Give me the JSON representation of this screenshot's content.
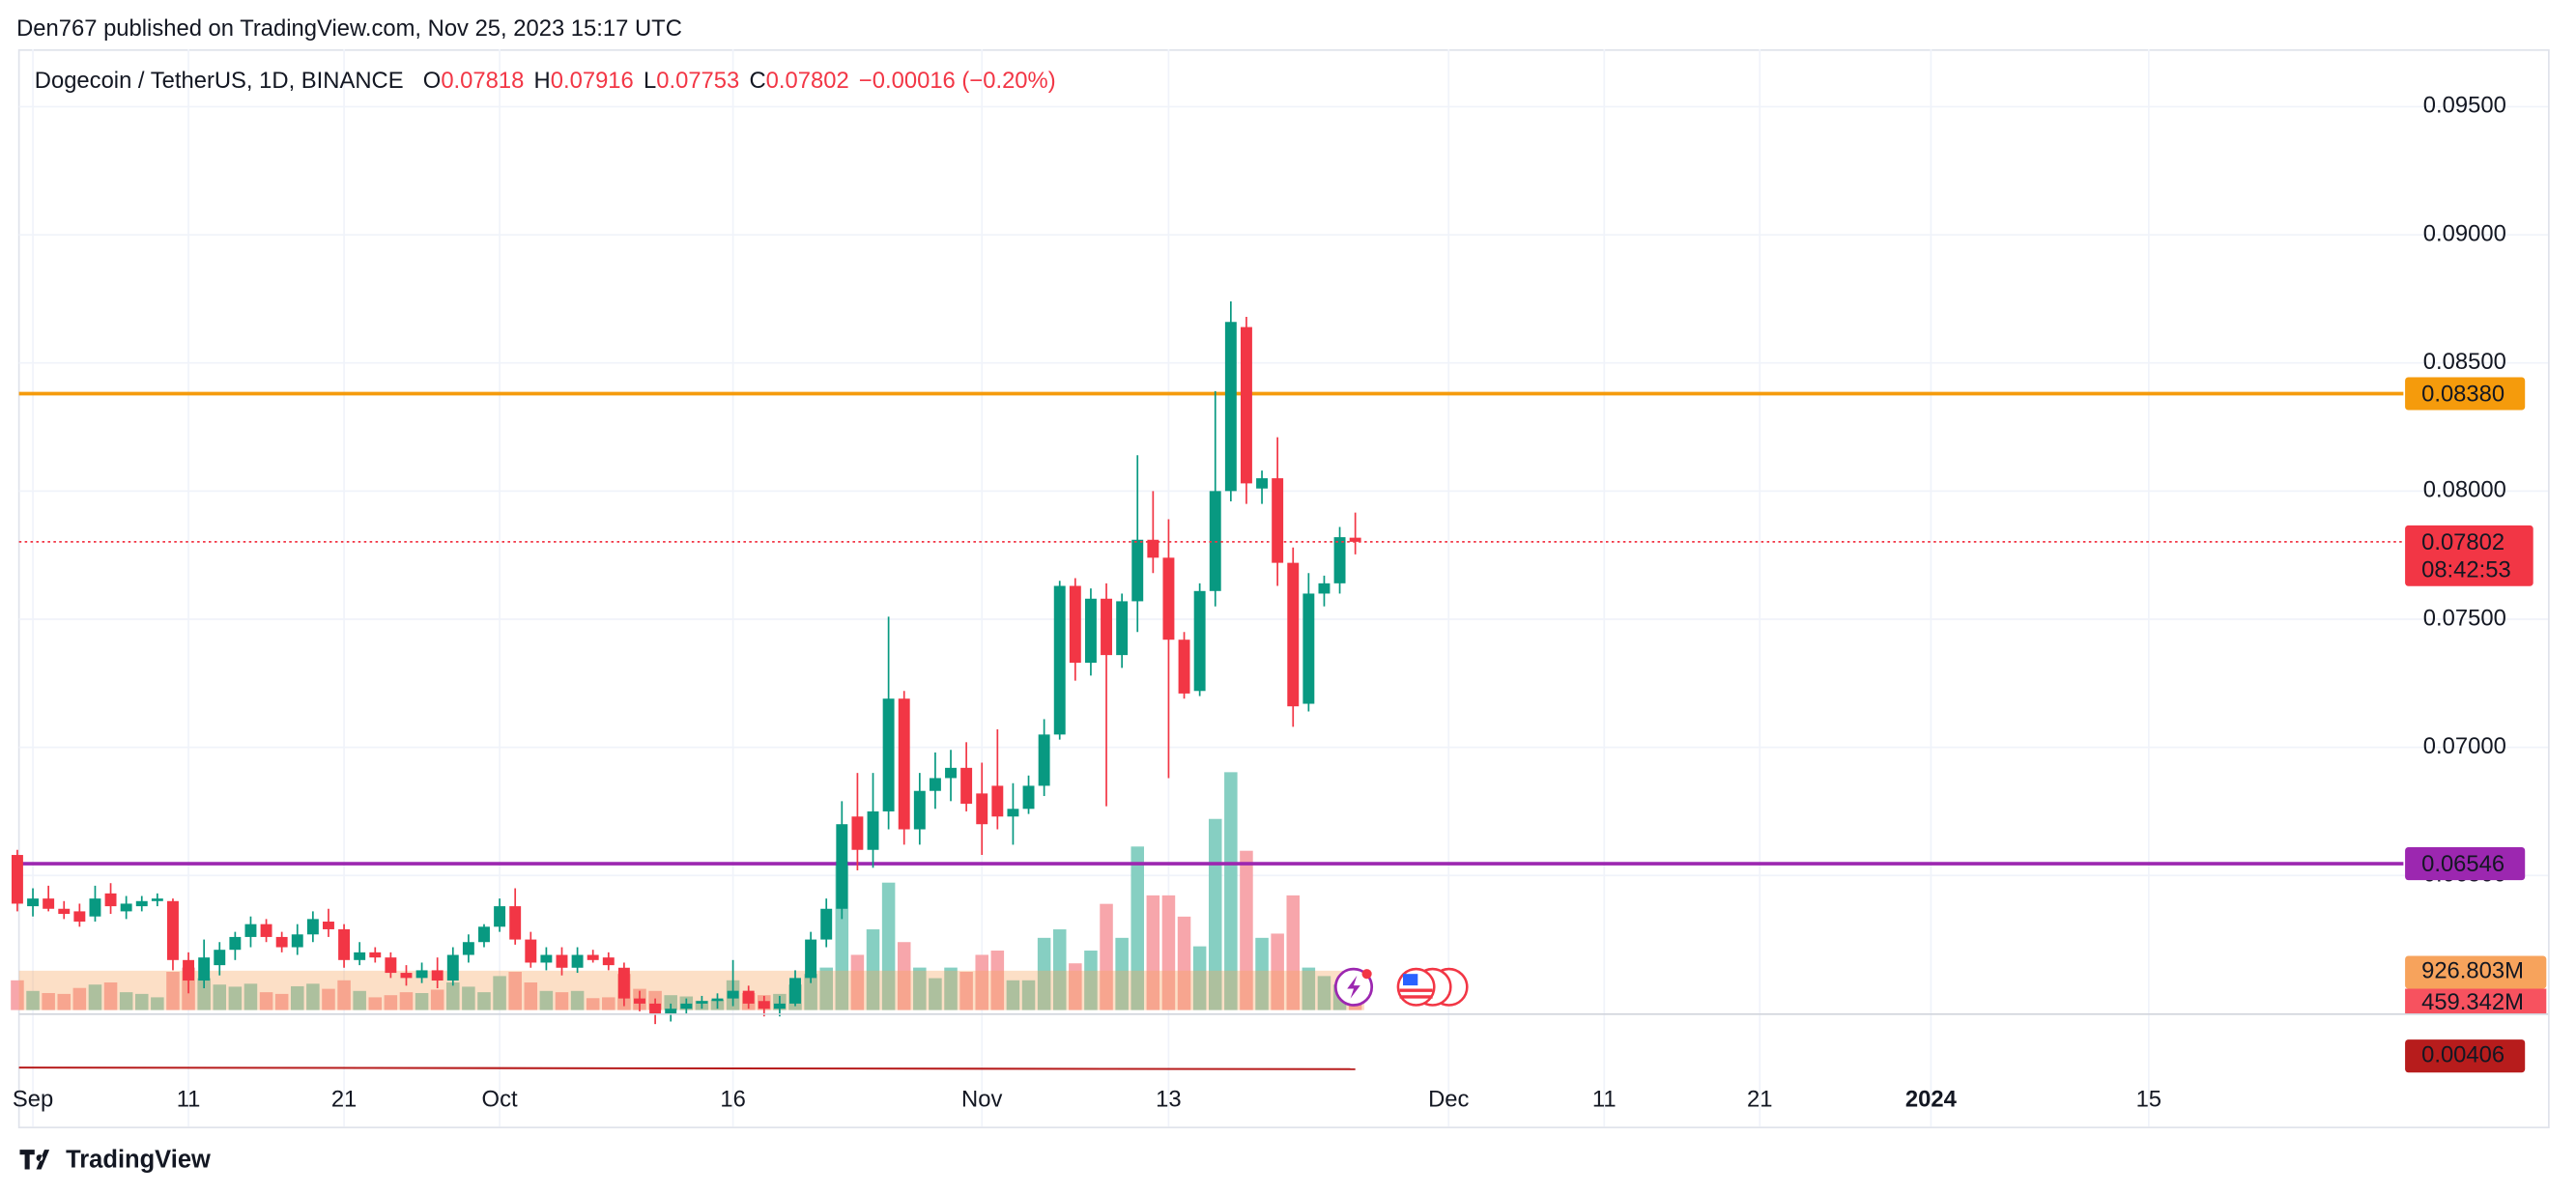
{
  "header": {
    "publisher": "Den767 published on TradingView.com, Nov 25, 2023 15:17 UTC"
  },
  "footer": {
    "brand": "TradingView"
  },
  "chart_data": {
    "type": "candlestick",
    "title": "Dogecoin / TetherUS, 1D, BINANCE",
    "ohlc_legend": [
      {
        "key": "O",
        "value": 0.07818
      },
      {
        "key": "H",
        "value": 0.07916
      },
      {
        "key": "L",
        "value": 0.07753
      },
      {
        "key": "C",
        "value": 0.07802
      }
    ],
    "change": "−0.00016 (−0.20%)",
    "x": [
      "2023-08-31",
      "2023-09-01",
      "2023-09-02",
      "2023-09-03",
      "2023-09-04",
      "2023-09-05",
      "2023-09-06",
      "2023-09-07",
      "2023-09-08",
      "2023-09-09",
      "2023-09-10",
      "2023-09-11",
      "2023-09-12",
      "2023-09-13",
      "2023-09-14",
      "2023-09-15",
      "2023-09-16",
      "2023-09-17",
      "2023-09-18",
      "2023-09-19",
      "2023-09-20",
      "2023-09-21",
      "2023-09-22",
      "2023-09-23",
      "2023-09-24",
      "2023-09-25",
      "2023-09-26",
      "2023-09-27",
      "2023-09-28",
      "2023-09-29",
      "2023-09-30",
      "2023-10-01",
      "2023-10-02",
      "2023-10-03",
      "2023-10-04",
      "2023-10-05",
      "2023-10-06",
      "2023-10-07",
      "2023-10-08",
      "2023-10-09",
      "2023-10-10",
      "2023-10-11",
      "2023-10-12",
      "2023-10-13",
      "2023-10-14",
      "2023-10-15",
      "2023-10-16",
      "2023-10-17",
      "2023-10-18",
      "2023-10-19",
      "2023-10-20",
      "2023-10-21",
      "2023-10-22",
      "2023-10-23",
      "2023-10-24",
      "2023-10-25",
      "2023-10-26",
      "2023-10-27",
      "2023-10-28",
      "2023-10-29",
      "2023-10-30",
      "2023-10-31",
      "2023-11-01",
      "2023-11-02",
      "2023-11-03",
      "2023-11-04",
      "2023-11-05",
      "2023-11-06",
      "2023-11-07",
      "2023-11-08",
      "2023-11-09",
      "2023-11-10",
      "2023-11-11",
      "2023-11-12",
      "2023-11-13",
      "2023-11-14",
      "2023-11-15",
      "2023-11-16",
      "2023-11-17",
      "2023-11-18",
      "2023-11-19",
      "2023-11-20",
      "2023-11-21",
      "2023-11-22",
      "2023-11-23",
      "2023-11-24",
      "2023-11-25"
    ],
    "open": [
      0.0658,
      0.0638,
      0.0641,
      0.0637,
      0.0636,
      0.0634,
      0.0643,
      0.0636,
      0.0638,
      0.064,
      0.064,
      0.0617,
      0.0609,
      0.0615,
      0.0621,
      0.0626,
      0.0631,
      0.0626,
      0.0622,
      0.0627,
      0.0632,
      0.0629,
      0.0617,
      0.062,
      0.0618,
      0.0612,
      0.061,
      0.0613,
      0.0609,
      0.0619,
      0.0624,
      0.063,
      0.0638,
      0.0625,
      0.0616,
      0.0619,
      0.0614,
      0.0619,
      0.0618,
      0.0614,
      0.0602,
      0.06,
      0.0596,
      0.0598,
      0.06,
      0.0601,
      0.0602,
      0.0605,
      0.0601,
      0.0598,
      0.06,
      0.061,
      0.0625,
      0.0637,
      0.0673,
      0.066,
      0.0675,
      0.0719,
      0.0668,
      0.0683,
      0.0688,
      0.0692,
      0.0682,
      0.0685,
      0.0673,
      0.0676,
      0.0685,
      0.0705,
      0.0763,
      0.0733,
      0.0758,
      0.0736,
      0.0757,
      0.0781,
      0.0774,
      0.0742,
      0.0722,
      0.0761,
      0.08,
      0.0864,
      0.0801,
      0.0805,
      0.0772,
      0.0717,
      0.076,
      0.0764,
      0.07818
    ],
    "high": [
      0.066,
      0.0645,
      0.0646,
      0.064,
      0.0639,
      0.0646,
      0.0647,
      0.0642,
      0.0642,
      0.0643,
      0.0641,
      0.062,
      0.0625,
      0.0624,
      0.0628,
      0.0634,
      0.0633,
      0.0628,
      0.0631,
      0.0636,
      0.0637,
      0.0631,
      0.0624,
      0.0622,
      0.062,
      0.0615,
      0.0616,
      0.0618,
      0.0622,
      0.0627,
      0.0631,
      0.0641,
      0.0645,
      0.0628,
      0.0622,
      0.0622,
      0.0622,
      0.0621,
      0.062,
      0.0616,
      0.0605,
      0.0602,
      0.06,
      0.0602,
      0.0603,
      0.0604,
      0.0617,
      0.0607,
      0.0603,
      0.0603,
      0.0613,
      0.0628,
      0.0641,
      0.0679,
      0.069,
      0.069,
      0.0751,
      0.0722,
      0.069,
      0.0698,
      0.0699,
      0.0702,
      0.0694,
      0.0707,
      0.0686,
      0.0689,
      0.0711,
      0.0765,
      0.0766,
      0.0762,
      0.0764,
      0.076,
      0.0814,
      0.08,
      0.0789,
      0.0745,
      0.0764,
      0.0839,
      0.0874,
      0.0868,
      0.0808,
      0.0821,
      0.0778,
      0.0768,
      0.0767,
      0.0786,
      0.07916
    ],
    "low": [
      0.0636,
      0.0634,
      0.0636,
      0.0633,
      0.063,
      0.0632,
      0.0635,
      0.0633,
      0.0636,
      0.0638,
      0.0613,
      0.0604,
      0.0606,
      0.0611,
      0.0617,
      0.0622,
      0.0624,
      0.062,
      0.0619,
      0.0624,
      0.0626,
      0.0614,
      0.0615,
      0.0616,
      0.061,
      0.0607,
      0.0608,
      0.0606,
      0.0607,
      0.0616,
      0.0622,
      0.0628,
      0.0623,
      0.0614,
      0.0613,
      0.0611,
      0.0612,
      0.0616,
      0.0613,
      0.0599,
      0.0597,
      0.0592,
      0.0593,
      0.0596,
      0.0598,
      0.0598,
      0.0599,
      0.0598,
      0.0595,
      0.0595,
      0.0599,
      0.0608,
      0.0622,
      0.0633,
      0.0652,
      0.0653,
      0.0668,
      0.0662,
      0.0662,
      0.0676,
      0.0679,
      0.0675,
      0.0658,
      0.0668,
      0.0662,
      0.0674,
      0.0681,
      0.0703,
      0.0726,
      0.0728,
      0.0677,
      0.0731,
      0.0745,
      0.0768,
      0.0688,
      0.0719,
      0.072,
      0.0755,
      0.0796,
      0.0795,
      0.0795,
      0.0763,
      0.0708,
      0.0714,
      0.0755,
      0.076,
      0.07753
    ],
    "close": [
      0.0639,
      0.0641,
      0.0637,
      0.0635,
      0.0632,
      0.0641,
      0.0638,
      0.0639,
      0.064,
      0.0641,
      0.0617,
      0.0609,
      0.0618,
      0.0621,
      0.0626,
      0.0631,
      0.0626,
      0.0622,
      0.0627,
      0.0633,
      0.0629,
      0.0617,
      0.062,
      0.0618,
      0.0612,
      0.061,
      0.0613,
      0.0609,
      0.0619,
      0.0624,
      0.063,
      0.0638,
      0.0625,
      0.0616,
      0.0619,
      0.0614,
      0.0619,
      0.0617,
      0.0615,
      0.0602,
      0.06,
      0.0596,
      0.0598,
      0.06,
      0.0601,
      0.0602,
      0.0605,
      0.06,
      0.0598,
      0.06,
      0.061,
      0.0625,
      0.0637,
      0.067,
      0.066,
      0.0675,
      0.0719,
      0.0668,
      0.0683,
      0.0688,
      0.0692,
      0.0678,
      0.067,
      0.0673,
      0.0676,
      0.0685,
      0.0705,
      0.0763,
      0.0733,
      0.0758,
      0.0736,
      0.0757,
      0.0781,
      0.0774,
      0.0742,
      0.0721,
      0.0761,
      0.08,
      0.0866,
      0.0803,
      0.0805,
      0.0772,
      0.0716,
      0.076,
      0.0764,
      0.0782,
      0.07802
    ],
    "up_color": "#089981",
    "down_color": "#f23645",
    "xlim": [
      "2023-08-31",
      "2024-01-31"
    ],
    "xticks": [
      {
        "value": "2023-09-01",
        "label": "Sep"
      },
      {
        "value": "2023-09-11",
        "label": "11"
      },
      {
        "value": "2023-09-21",
        "label": "21"
      },
      {
        "value": "2023-10-01",
        "label": "Oct"
      },
      {
        "value": "2023-10-16",
        "label": "16"
      },
      {
        "value": "2023-11-01",
        "label": "Nov"
      },
      {
        "value": "2023-11-13",
        "label": "13"
      },
      {
        "value": "2023-12-01",
        "label": "Dec"
      },
      {
        "value": "2023-12-11",
        "label": "11"
      },
      {
        "value": "2023-12-21",
        "label": "21"
      },
      {
        "value": "2024-01-01",
        "label": "2024"
      },
      {
        "value": "2024-01-15",
        "label": "15"
      }
    ],
    "ylim": [
      0.05962,
      0.09724
    ],
    "yticks": [
      {
        "value": 0.095,
        "label": "0.09500"
      },
      {
        "value": 0.09,
        "label": "0.09000"
      },
      {
        "value": 0.085,
        "label": "0.08500"
      },
      {
        "value": 0.08,
        "label": "0.08000"
      },
      {
        "value": 0.075,
        "label": "0.07500"
      },
      {
        "value": 0.07,
        "label": "0.07000"
      },
      {
        "value": 0.065,
        "label": "0.06500"
      }
    ],
    "grid": true,
    "hlines": [
      {
        "value": 0.0838,
        "label": "0.08380",
        "color": "#f59b0c"
      },
      {
        "value": 0.06546,
        "label": "0.06546",
        "color": "#9c27b0"
      }
    ],
    "last_price": {
      "value": 0.07802,
      "label": "0.07802",
      "countdown": "08:42:53",
      "color": "#f23645"
    },
    "volume": {
      "values": [
        700,
        450,
        400,
        380,
        520,
        600,
        650,
        420,
        380,
        300,
        900,
        1000,
        750,
        600,
        550,
        620,
        420,
        380,
        560,
        620,
        500,
        700,
        450,
        300,
        350,
        420,
        400,
        480,
        650,
        550,
        420,
        800,
        900,
        650,
        450,
        420,
        450,
        280,
        300,
        850,
        500,
        450,
        350,
        320,
        220,
        240,
        700,
        400,
        350,
        380,
        600,
        850,
        1000,
        3500,
        1300,
        1900,
        3000,
        1600,
        1000,
        750,
        1000,
        900,
        1300,
        1400,
        700,
        700,
        1700,
        1900,
        1100,
        1400,
        2500,
        1700,
        3850,
        2700,
        2700,
        2200,
        1500,
        4500,
        5600,
        3750,
        1700,
        1800,
        2700,
        1000,
        800,
        600,
        459.342
      ],
      "ylim": [
        0,
        5800
      ],
      "up_color": "#86cfc2",
      "down_color": "#f7a6ab",
      "ma": {
        "value": 926.803,
        "label": "926.803M",
        "color": "#f7a35c"
      },
      "last": {
        "value": 459.342,
        "label": "459.342M",
        "color": "#f7525f"
      }
    },
    "indicator": {
      "value": 0.00406,
      "label": "0.00406",
      "color": "#b71c1c"
    }
  }
}
